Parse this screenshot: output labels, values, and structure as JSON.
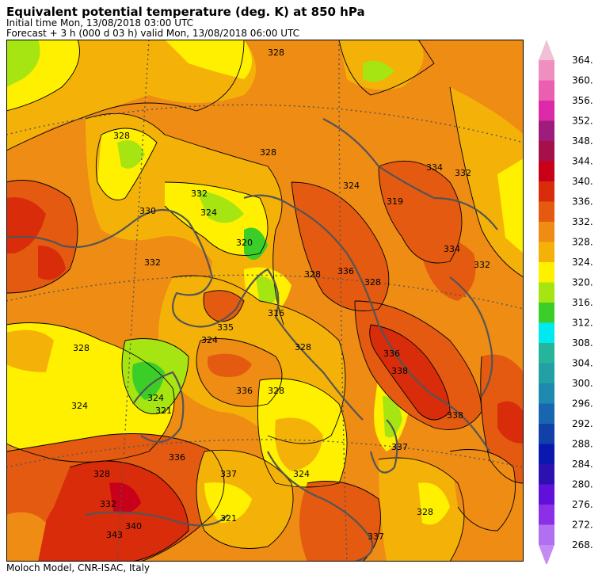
{
  "header": {
    "title": "Equivalent potential temperature (deg. K) at 850 hPa",
    "initial_time": "Initial time  Mon, 13/08/2018  03:00 UTC",
    "forecast": "Forecast  +   3 h  (000 d 03 h)  valid Mon, 13/08/2018 06:00 UTC"
  },
  "footer": "Moloch Model, CNR-ISAC, Italy",
  "colorbar": {
    "levels": [
      364,
      360,
      356,
      352,
      348,
      344,
      340,
      336,
      332,
      328,
      324,
      320,
      316,
      312,
      308,
      304,
      300,
      296,
      292,
      288,
      284,
      280,
      276,
      272,
      268
    ],
    "labels": [
      "364.",
      "360.",
      "356.",
      "352.",
      "348.",
      "344.",
      "340.",
      "336.",
      "332.",
      "328.",
      "324.",
      "320.",
      "316.",
      "312.",
      "308.",
      "304.",
      "300.",
      "296.",
      "292.",
      "288.",
      "284.",
      "280.",
      "276.",
      "272.",
      "268."
    ],
    "colors": [
      "#ee8fc0",
      "#ea5fb0",
      "#dd2aa8",
      "#a01c7c",
      "#a6104a",
      "#c8001a",
      "#d82c0a",
      "#e35a10",
      "#ee8c14",
      "#f4b208",
      "#fff000",
      "#a6e412",
      "#3cce28",
      "#00e8f0",
      "#26b49a",
      "#22a0a4",
      "#1e8ab0",
      "#1866b0",
      "#1040a8",
      "#0a18b0",
      "#2c10b0",
      "#6010d8",
      "#8c30e8",
      "#b070f0"
    ],
    "top_arrow_color": "#f2c0d6",
    "bottom_arrow_color": "#c48cf2"
  },
  "map": {
    "contour_labels": [
      {
        "text": "328",
        "pos": [
          330,
          20
        ]
      },
      {
        "text": "334",
        "pos": [
          530,
          165
        ]
      },
      {
        "text": "332",
        "pos": [
          566,
          172
        ]
      },
      {
        "text": "324",
        "pos": [
          425,
          188
        ]
      },
      {
        "text": "319",
        "pos": [
          480,
          208
        ]
      },
      {
        "text": "328",
        "pos": [
          135,
          125
        ]
      },
      {
        "text": "328",
        "pos": [
          320,
          146
        ]
      },
      {
        "text": "332",
        "pos": [
          233,
          198
        ]
      },
      {
        "text": "330",
        "pos": [
          168,
          220
        ]
      },
      {
        "text": "324",
        "pos": [
          245,
          222
        ]
      },
      {
        "text": "320",
        "pos": [
          290,
          260
        ]
      },
      {
        "text": "332",
        "pos": [
          174,
          285
        ]
      },
      {
        "text": "336",
        "pos": [
          418,
          296
        ]
      },
      {
        "text": "328",
        "pos": [
          452,
          310
        ]
      },
      {
        "text": "334",
        "pos": [
          552,
          268
        ]
      },
      {
        "text": "332",
        "pos": [
          590,
          288
        ]
      },
      {
        "text": "328",
        "pos": [
          376,
          300
        ]
      },
      {
        "text": "316",
        "pos": [
          330,
          349
        ]
      },
      {
        "text": "335",
        "pos": [
          266,
          367
        ]
      },
      {
        "text": "324",
        "pos": [
          246,
          383
        ]
      },
      {
        "text": "328",
        "pos": [
          364,
          392
        ]
      },
      {
        "text": "328",
        "pos": [
          84,
          393
        ]
      },
      {
        "text": "336",
        "pos": [
          476,
          400
        ]
      },
      {
        "text": "338",
        "pos": [
          486,
          422
        ]
      },
      {
        "text": "336",
        "pos": [
          290,
          447
        ]
      },
      {
        "text": "328",
        "pos": [
          330,
          447
        ]
      },
      {
        "text": "324",
        "pos": [
          82,
          466
        ]
      },
      {
        "text": "338",
        "pos": [
          556,
          478
        ]
      },
      {
        "text": "324",
        "pos": [
          178,
          456
        ]
      },
      {
        "text": "321",
        "pos": [
          188,
          472
        ]
      },
      {
        "text": "337",
        "pos": [
          486,
          518
        ]
      },
      {
        "text": "336",
        "pos": [
          205,
          531
        ]
      },
      {
        "text": "337",
        "pos": [
          270,
          552
        ]
      },
      {
        "text": "328",
        "pos": [
          110,
          552
        ]
      },
      {
        "text": "332",
        "pos": [
          118,
          590
        ]
      },
      {
        "text": "321",
        "pos": [
          270,
          608
        ]
      },
      {
        "text": "340",
        "pos": [
          150,
          618
        ]
      },
      {
        "text": "343",
        "pos": [
          126,
          629
        ]
      },
      {
        "text": "337",
        "pos": [
          456,
          631
        ]
      },
      {
        "text": "328",
        "pos": [
          518,
          600
        ]
      },
      {
        "text": "324",
        "pos": [
          362,
          552
        ]
      }
    ]
  }
}
